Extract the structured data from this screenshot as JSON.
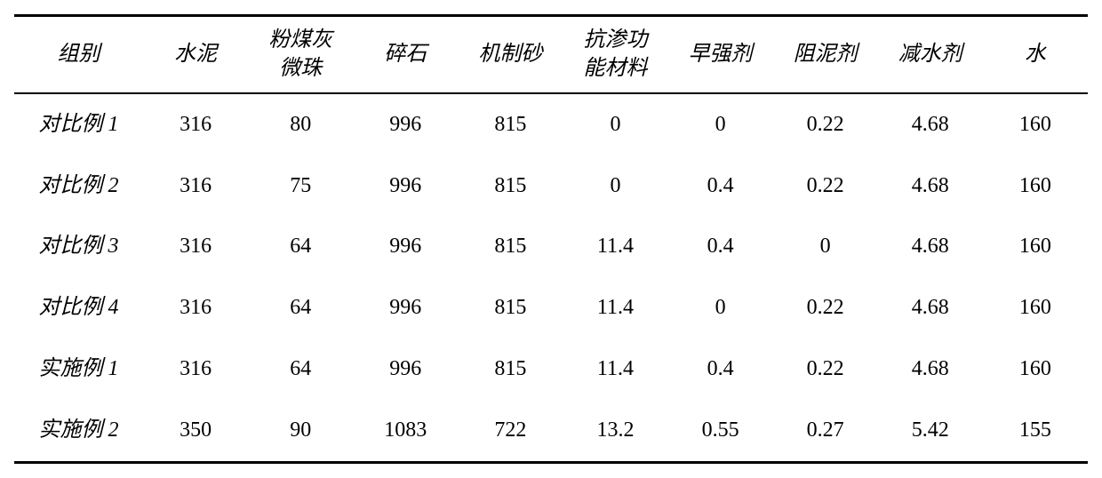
{
  "table": {
    "type": "table",
    "background_color": "#ffffff",
    "text_color": "#000000",
    "border_color": "#000000",
    "header_fontsize": 24,
    "body_fontsize": 24,
    "font_style_header": "italic",
    "font_style_rowlabel": "italic",
    "columns": [
      {
        "lines": [
          "组别"
        ],
        "key": "group",
        "width_pct": 12
      },
      {
        "lines": [
          "水泥"
        ],
        "key": "cement",
        "width_pct": 9.77
      },
      {
        "lines": [
          "粉煤灰",
          "微珠"
        ],
        "key": "flyash_microbead",
        "width_pct": 9.77
      },
      {
        "lines": [
          "碎石"
        ],
        "key": "crushed_stone",
        "width_pct": 9.77
      },
      {
        "lines": [
          "机制砂"
        ],
        "key": "manufactured_sand",
        "width_pct": 9.77
      },
      {
        "lines": [
          "抗渗功",
          "能材料"
        ],
        "key": "anti_permeation",
        "width_pct": 9.77
      },
      {
        "lines": [
          "早强剂"
        ],
        "key": "early_strength",
        "width_pct": 9.77
      },
      {
        "lines": [
          "阻泥剂"
        ],
        "key": "clay_inhibitor",
        "width_pct": 9.77
      },
      {
        "lines": [
          "减水剂"
        ],
        "key": "water_reducer",
        "width_pct": 9.77
      },
      {
        "lines": [
          "水"
        ],
        "key": "water",
        "width_pct": 9.77
      }
    ],
    "rows": [
      {
        "label": "对比例 1",
        "values": [
          "316",
          "80",
          "996",
          "815",
          "0",
          "0",
          "0.22",
          "4.68",
          "160"
        ]
      },
      {
        "label": "对比例 2",
        "values": [
          "316",
          "75",
          "996",
          "815",
          "0",
          "0.4",
          "0.22",
          "4.68",
          "160"
        ]
      },
      {
        "label": "对比例 3",
        "values": [
          "316",
          "64",
          "996",
          "815",
          "11.4",
          "0.4",
          "0",
          "4.68",
          "160"
        ]
      },
      {
        "label": "对比例 4",
        "values": [
          "316",
          "64",
          "996",
          "815",
          "11.4",
          "0",
          "0.22",
          "4.68",
          "160"
        ]
      },
      {
        "label": "实施例 1",
        "values": [
          "316",
          "64",
          "996",
          "815",
          "11.4",
          "0.4",
          "0.22",
          "4.68",
          "160"
        ]
      },
      {
        "label": "实施例 2",
        "values": [
          "350",
          "90",
          "1083",
          "722",
          "13.2",
          "0.55",
          "0.27",
          "5.42",
          "155"
        ]
      }
    ]
  }
}
